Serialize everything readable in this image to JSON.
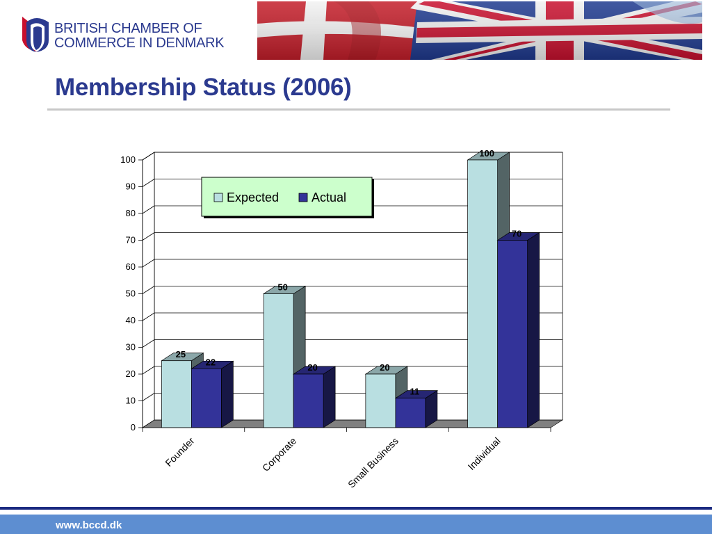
{
  "header": {
    "logo_line1": "BRITISH CHAMBER OF",
    "logo_line2": "COMMERCE IN DENMARK"
  },
  "page_title": "Membership Status (2006)",
  "footer": {
    "url": "www.bccd.dk"
  },
  "colors": {
    "brand_blue": "#2b3a8f",
    "expected_fill": "#b9dfe1",
    "actual_fill": "#333399",
    "legend_bg": "#ccffcc",
    "footer_bar": "#5d8ed1"
  },
  "chart_data": {
    "type": "bar",
    "title": "",
    "xlabel": "",
    "ylabel": "",
    "ylim": [
      0,
      100
    ],
    "yticks": [
      0,
      10,
      20,
      30,
      40,
      50,
      60,
      70,
      80,
      90,
      100
    ],
    "categories": [
      "Founder",
      "Corporate",
      "Small Business",
      "Individual"
    ],
    "series": [
      {
        "name": "Expected",
        "values": [
          25,
          50,
          20,
          100
        ],
        "color": "#b9dfe1"
      },
      {
        "name": "Actual",
        "values": [
          22,
          20,
          11,
          70
        ],
        "color": "#333399"
      }
    ],
    "grid": true,
    "legend_position": "top-left inside plot",
    "style": "3d-clustered-column"
  }
}
